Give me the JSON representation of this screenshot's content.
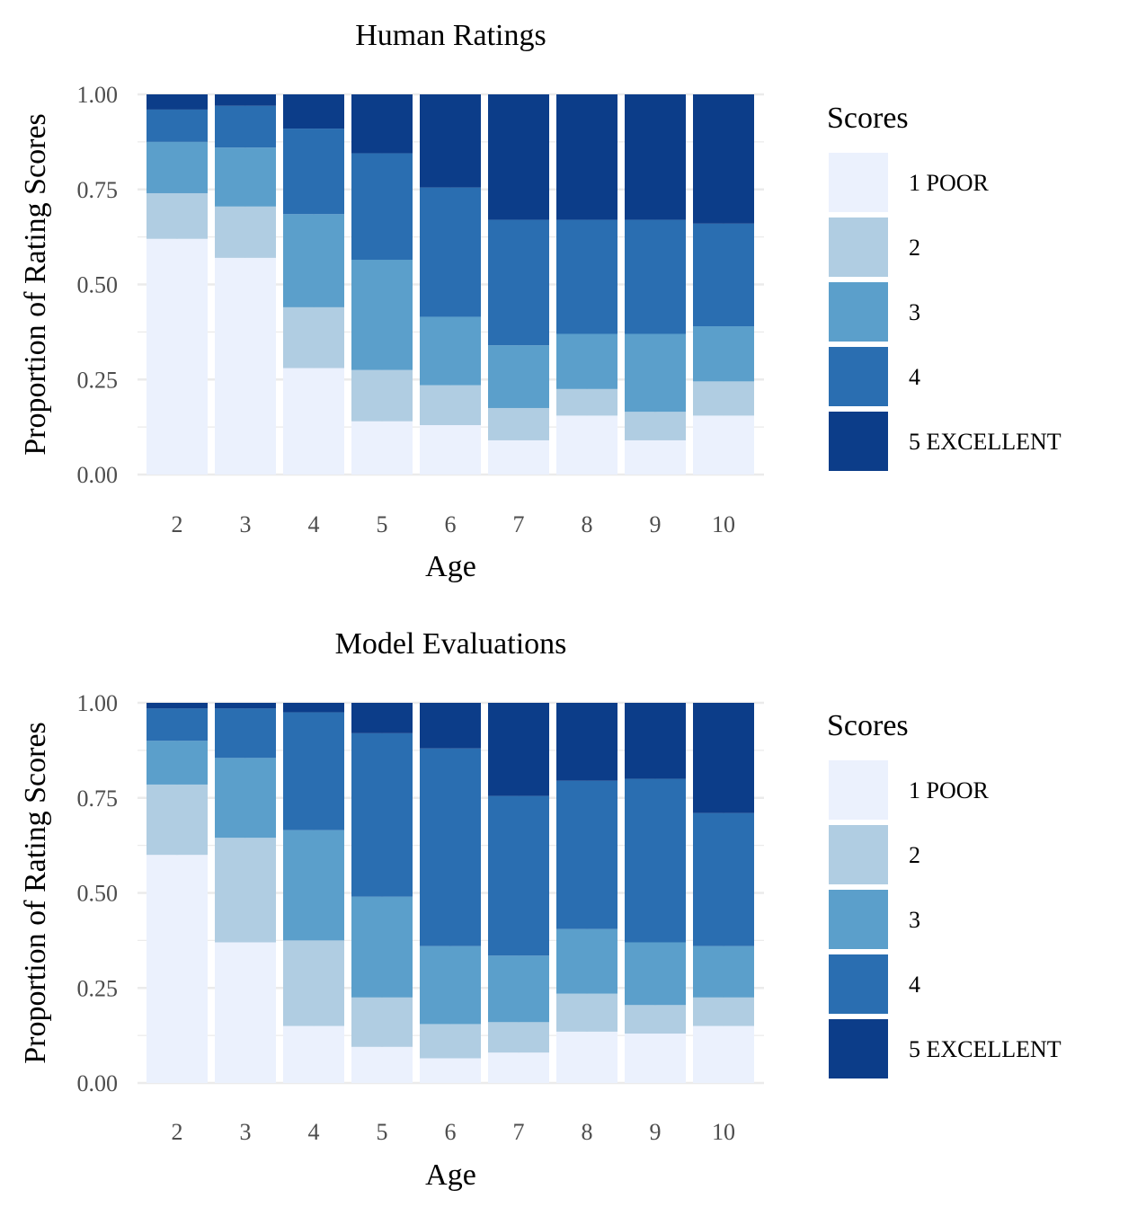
{
  "legend": {
    "title": "Scores",
    "entries": [
      "1 POOR",
      "2",
      "3",
      "4",
      "5 EXCELLENT"
    ],
    "colors": [
      "#ebf1fd",
      "#b0cde2",
      "#5b9fcb",
      "#2a6eb1",
      "#0c3d89"
    ]
  },
  "chart_data": [
    {
      "type": "bar",
      "stacked": true,
      "title": "Human Ratings",
      "xlabel": "Age",
      "ylabel": "Proportion of Rating Scores",
      "categories": [
        "2",
        "3",
        "4",
        "5",
        "6",
        "7",
        "8",
        "9",
        "10"
      ],
      "ylim": [
        0,
        1
      ],
      "yticks": [
        "0.00",
        "0.25",
        "0.50",
        "0.75",
        "1.00"
      ],
      "grid": true,
      "legend_position": "right",
      "series": [
        {
          "name": "1 POOR",
          "values": [
            0.62,
            0.57,
            0.28,
            0.14,
            0.13,
            0.09,
            0.155,
            0.09,
            0.155
          ]
        },
        {
          "name": "2",
          "values": [
            0.12,
            0.135,
            0.16,
            0.135,
            0.105,
            0.085,
            0.07,
            0.075,
            0.09
          ]
        },
        {
          "name": "3",
          "values": [
            0.135,
            0.155,
            0.245,
            0.29,
            0.18,
            0.165,
            0.145,
            0.205,
            0.145
          ]
        },
        {
          "name": "4",
          "values": [
            0.085,
            0.11,
            0.225,
            0.28,
            0.34,
            0.33,
            0.3,
            0.3,
            0.27
          ]
        },
        {
          "name": "5 EXCELLENT",
          "values": [
            0.04,
            0.03,
            0.09,
            0.155,
            0.245,
            0.33,
            0.33,
            0.33,
            0.34
          ]
        }
      ]
    },
    {
      "type": "bar",
      "stacked": true,
      "title": "Model Evaluations",
      "xlabel": "Age",
      "ylabel": "Proportion of Rating Scores",
      "categories": [
        "2",
        "3",
        "4",
        "5",
        "6",
        "7",
        "8",
        "9",
        "10"
      ],
      "ylim": [
        0,
        1
      ],
      "yticks": [
        "0.00",
        "0.25",
        "0.50",
        "0.75",
        "1.00"
      ],
      "grid": true,
      "legend_position": "right",
      "series": [
        {
          "name": "1 POOR",
          "values": [
            0.6,
            0.37,
            0.15,
            0.095,
            0.065,
            0.08,
            0.135,
            0.13,
            0.15
          ]
        },
        {
          "name": "2",
          "values": [
            0.185,
            0.275,
            0.225,
            0.13,
            0.09,
            0.08,
            0.1,
            0.075,
            0.075
          ]
        },
        {
          "name": "3",
          "values": [
            0.115,
            0.21,
            0.29,
            0.265,
            0.205,
            0.175,
            0.17,
            0.165,
            0.135
          ]
        },
        {
          "name": "4",
          "values": [
            0.085,
            0.13,
            0.31,
            0.43,
            0.52,
            0.42,
            0.39,
            0.43,
            0.35
          ]
        },
        {
          "name": "5 EXCELLENT",
          "values": [
            0.015,
            0.015,
            0.025,
            0.08,
            0.12,
            0.245,
            0.205,
            0.2,
            0.29
          ]
        }
      ]
    }
  ]
}
